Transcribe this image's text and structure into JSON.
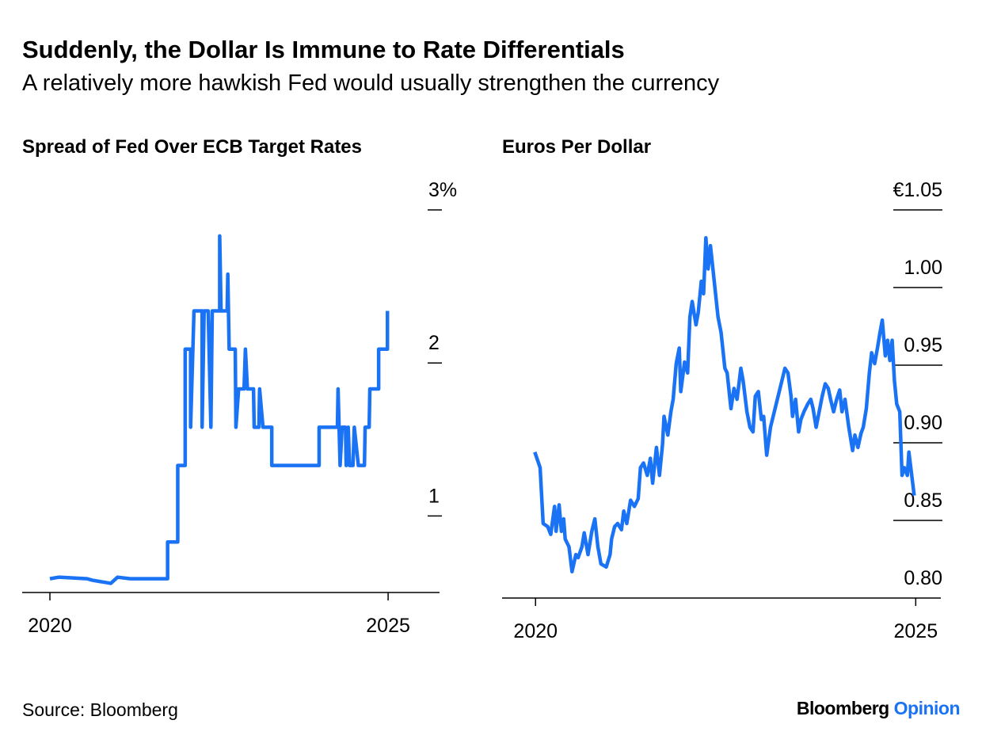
{
  "title": "Suddenly, the Dollar Is Immune to Rate Differentials",
  "subtitle": "A relatively more hawkish Fed would usually strengthen the currency",
  "source": "Source: Bloomberg",
  "brand": {
    "name": "Bloomberg",
    "section": "Opinion"
  },
  "chart_data": [
    {
      "type": "line",
      "title": "Spread of Fed Over ECB Target Rates",
      "color": "#1a73f5",
      "xlim": [
        2019.59,
        2025.76
      ],
      "xticks": [
        2020,
        2025
      ],
      "ylim": [
        0.5,
        3
      ],
      "yticks": [
        1,
        2,
        {
          "value": 3,
          "label": "3%"
        }
      ],
      "x": [
        2020.0,
        2020.13,
        2020.55,
        2020.63,
        2020.9,
        2021.0,
        2021.19,
        2021.74,
        2021.74,
        2021.89,
        2021.89,
        2022.0,
        2022.0,
        2022.08,
        2022.08,
        2022.13,
        2022.25,
        2022.25,
        2022.28,
        2022.34,
        2022.38,
        2022.4,
        2022.51,
        2022.51,
        2022.53,
        2022.62,
        2022.63,
        2022.65,
        2022.74,
        2022.75,
        2022.79,
        2022.87,
        2022.89,
        2022.92,
        2023.01,
        2023.02,
        2023.09,
        2023.1,
        2023.15,
        2023.28,
        2023.28,
        2023.98,
        2023.98,
        2024.25,
        2024.26,
        2024.29,
        2024.32,
        2024.37,
        2024.38,
        2024.41,
        2024.43,
        2024.48,
        2024.5,
        2024.56,
        2024.65,
        2024.66,
        2024.72,
        2024.73,
        2024.86,
        2024.86,
        2024.99,
        2024.99
      ],
      "values": [
        0.59,
        0.6,
        0.59,
        0.58,
        0.56,
        0.6,
        0.59,
        0.59,
        0.83,
        0.83,
        1.33,
        1.33,
        2.09,
        2.09,
        1.58,
        2.34,
        2.34,
        1.58,
        2.34,
        2.34,
        1.58,
        2.34,
        2.34,
        2.83,
        2.34,
        2.34,
        2.58,
        2.09,
        2.09,
        1.58,
        1.83,
        1.83,
        2.09,
        1.83,
        1.83,
        1.58,
        1.58,
        1.83,
        1.58,
        1.58,
        1.33,
        1.33,
        1.58,
        1.58,
        1.83,
        1.33,
        1.58,
        1.58,
        1.33,
        1.58,
        1.33,
        1.33,
        1.58,
        1.33,
        1.33,
        1.58,
        1.58,
        1.83,
        1.83,
        2.09,
        2.09,
        2.34
      ]
    },
    {
      "type": "line",
      "title": "Euros Per Dollar",
      "color": "#1a73f5",
      "xlim": [
        2019.56,
        2025.33
      ],
      "xticks": [
        2020,
        2025
      ],
      "ylim": [
        0.8,
        1.05
      ],
      "yticks": [
        {
          "value": 0.8,
          "label": "0.80"
        },
        {
          "value": 0.85,
          "label": "0.85"
        },
        {
          "value": 0.9,
          "label": "0.90"
        },
        {
          "value": 0.95,
          "label": "0.95"
        },
        {
          "value": 1.0,
          "label": "1.00"
        },
        {
          "value": 1.05,
          "label": "€1.05"
        }
      ],
      "x": [
        2019.99,
        2020.06,
        2020.1,
        2020.16,
        2020.2,
        2020.25,
        2020.27,
        2020.31,
        2020.34,
        2020.37,
        2020.39,
        2020.44,
        2020.48,
        2020.53,
        2020.56,
        2020.61,
        2020.64,
        2020.69,
        2020.74,
        2020.78,
        2020.82,
        2020.86,
        2020.93,
        2020.98,
        2021.0,
        2021.04,
        2021.08,
        2021.13,
        2021.16,
        2021.2,
        2021.25,
        2021.3,
        2021.35,
        2021.38,
        2021.42,
        2021.47,
        2021.51,
        2021.54,
        2021.59,
        2021.63,
        2021.67,
        2021.69,
        2021.74,
        2021.78,
        2021.81,
        2021.85,
        2021.89,
        2021.91,
        2021.96,
        2022.0,
        2022.03,
        2022.06,
        2022.11,
        2022.14,
        2022.18,
        2022.21,
        2022.24,
        2022.27,
        2022.3,
        2022.35,
        2022.4,
        2022.44,
        2022.49,
        2022.52,
        2022.57,
        2022.61,
        2022.65,
        2022.7,
        2022.73,
        2022.78,
        2022.82,
        2022.86,
        2022.89,
        2022.93,
        2022.97,
        2023.0,
        2023.04,
        2023.09,
        2023.14,
        2023.19,
        2023.24,
        2023.28,
        2023.32,
        2023.36,
        2023.38,
        2023.42,
        2023.46,
        2023.49,
        2023.53,
        2023.58,
        2023.62,
        2023.65,
        2023.69,
        2023.73,
        2023.77,
        2023.81,
        2023.85,
        2023.88,
        2023.92,
        2023.96,
        2024.0,
        2024.03,
        2024.07,
        2024.12,
        2024.17,
        2024.2,
        2024.24,
        2024.28,
        2024.31,
        2024.35,
        2024.39,
        2024.42,
        2024.46,
        2024.5,
        2024.53,
        2024.56,
        2024.6,
        2024.63,
        2024.66,
        2024.69,
        2024.72,
        2024.75,
        2024.79,
        2024.82,
        2024.85,
        2024.89,
        2024.91,
        2024.94,
        2024.98
      ],
      "values": [
        0.894,
        0.884,
        0.848,
        0.846,
        0.841,
        0.859,
        0.843,
        0.86,
        0.843,
        0.851,
        0.838,
        0.833,
        0.817,
        0.828,
        0.826,
        0.833,
        0.842,
        0.828,
        0.843,
        0.851,
        0.833,
        0.822,
        0.82,
        0.828,
        0.838,
        0.846,
        0.848,
        0.844,
        0.856,
        0.848,
        0.863,
        0.859,
        0.864,
        0.884,
        0.887,
        0.879,
        0.89,
        0.874,
        0.897,
        0.879,
        0.899,
        0.917,
        0.905,
        0.92,
        0.928,
        0.951,
        0.961,
        0.933,
        0.952,
        0.945,
        0.981,
        0.991,
        0.976,
        0.984,
        1.004,
        0.996,
        1.032,
        1.012,
        1.027,
        1.004,
        0.981,
        0.971,
        0.948,
        0.945,
        0.922,
        0.935,
        0.928,
        0.948,
        0.94,
        0.92,
        0.91,
        0.907,
        0.93,
        0.933,
        0.915,
        0.917,
        0.892,
        0.91,
        0.92,
        0.93,
        0.94,
        0.948,
        0.945,
        0.93,
        0.917,
        0.928,
        0.907,
        0.915,
        0.92,
        0.925,
        0.928,
        0.922,
        0.91,
        0.92,
        0.93,
        0.938,
        0.935,
        0.928,
        0.92,
        0.928,
        0.934,
        0.92,
        0.928,
        0.91,
        0.895,
        0.905,
        0.897,
        0.906,
        0.91,
        0.922,
        0.945,
        0.958,
        0.951,
        0.962,
        0.971,
        0.979,
        0.956,
        0.966,
        0.953,
        0.966,
        0.94,
        0.925,
        0.92,
        0.879,
        0.884,
        0.879,
        0.894,
        0.882,
        0.866
      ]
    }
  ]
}
